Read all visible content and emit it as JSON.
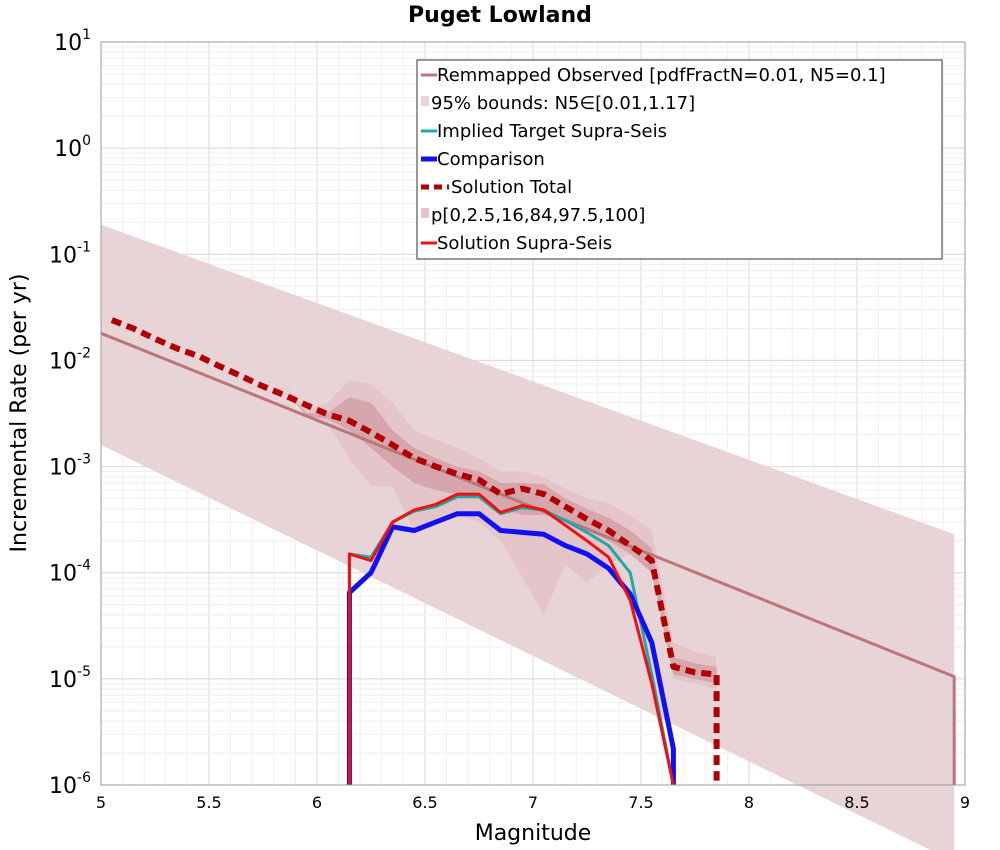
{
  "chart_data": {
    "type": "line",
    "title": "Puget Lowland",
    "xlabel": "Magnitude",
    "ylabel": "Incremental Rate (per yr)",
    "yscale": "log",
    "xlim": [
      5,
      9
    ],
    "ylim": [
      1e-06,
      10
    ],
    "grid": true,
    "legend_position": "top-right",
    "x_ticks": [
      "5",
      "5.5",
      "6",
      "6.5",
      "7",
      "7.5",
      "8",
      "8.5",
      "9"
    ],
    "y_ticks": [
      {
        "base": "10",
        "exp": "-6"
      },
      {
        "base": "10",
        "exp": "-5"
      },
      {
        "base": "10",
        "exp": "-4"
      },
      {
        "base": "10",
        "exp": "-3"
      },
      {
        "base": "10",
        "exp": "-2"
      },
      {
        "base": "10",
        "exp": "-1"
      },
      {
        "base": "10",
        "exp": "0"
      },
      {
        "base": "10",
        "exp": "1"
      }
    ],
    "legend": [
      "Remmapped Observed [pdfFractN=0.01, N5=0.1]",
      "95% bounds: N5∈[0.01,1.17]",
      "Implied Target Supra-Seis",
      "Comparison",
      "Solution Total",
      "p[0,2.5,16,84,97.5,100]",
      "Solution Supra-Seis"
    ],
    "colors": {
      "observed": "#b87878",
      "band": "#e8d4d6",
      "pband_outer": "#e4c6ca",
      "pband_inner": "#d6a6ac",
      "target": "#20a8a8",
      "comparison": "#1010f0",
      "total": "#b00000",
      "supra": "#f01010"
    },
    "series": {
      "observed": {
        "x": [
          5.0,
          8.95,
          8.95
        ],
        "y": [
          0.018,
          1.05e-05,
          1e-06
        ]
      },
      "bounds_upper": {
        "x": [
          5.0,
          8.95
        ],
        "y": [
          0.19,
          0.00023
        ]
      },
      "bounds_lower": {
        "x": [
          5.0,
          8.95
        ],
        "y": [
          0.0016,
          1.9e-07
        ]
      },
      "p_outer_upper": {
        "x": [
          5.75,
          5.85,
          5.95,
          6.05,
          6.15,
          6.25,
          6.35,
          6.45,
          6.55,
          6.65,
          6.75,
          6.85,
          6.95,
          7.05,
          7.15,
          7.25,
          7.35,
          7.45,
          7.55,
          7.65,
          7.75,
          7.85
        ],
        "y": [
          0.0055,
          0.006,
          0.0035,
          0.004,
          0.0065,
          0.006,
          0.004,
          0.0022,
          0.0018,
          0.0015,
          0.0012,
          0.0009,
          0.0009,
          0.0008,
          0.00062,
          0.0005,
          0.00045,
          0.00035,
          0.00025,
          2.2e-05,
          1.8e-05,
          1.6e-05
        ]
      },
      "p_outer_lower": {
        "x": [
          5.75,
          5.85,
          5.95,
          6.05,
          6.15,
          6.25,
          6.35,
          6.45,
          6.55,
          6.65,
          6.75,
          6.85,
          6.95,
          7.05,
          7.15,
          7.25,
          7.35,
          7.45,
          7.55,
          7.65,
          7.75,
          7.85
        ],
        "y": [
          0.0055,
          0.006,
          0.003,
          0.0025,
          0.0012,
          0.00065,
          0.00065,
          0.00025,
          0.0003,
          0.00035,
          0.0003,
          0.0002,
          9e-05,
          4e-05,
          0.00012,
          8e-05,
          0.00012,
          0.00015,
          0.0001,
          1e-05,
          9e-06,
          8e-06
        ]
      },
      "p_inner_upper": {
        "x": [
          5.75,
          5.85,
          5.95,
          6.05,
          6.15,
          6.25,
          6.35,
          6.45,
          6.55,
          6.65,
          6.75,
          6.85,
          6.95,
          7.05,
          7.15,
          7.25,
          7.35,
          7.45,
          7.55,
          7.65,
          7.75,
          7.85
        ],
        "y": [
          0.0055,
          0.0055,
          0.0032,
          0.0032,
          0.0045,
          0.004,
          0.0022,
          0.0015,
          0.0012,
          0.001,
          0.0009,
          0.0007,
          0.0007,
          0.00068,
          0.0005,
          0.0004,
          0.00033,
          0.00025,
          0.00017,
          1.6e-05,
          1.4e-05,
          1.3e-05
        ]
      },
      "p_inner_lower": {
        "x": [
          5.75,
          5.85,
          5.95,
          6.05,
          6.15,
          6.25,
          6.35,
          6.45,
          6.55,
          6.65,
          6.75,
          6.85,
          6.95,
          7.05,
          7.15,
          7.25,
          7.35,
          7.45,
          7.55,
          7.65,
          7.75,
          7.85
        ],
        "y": [
          0.0055,
          0.0055,
          0.003,
          0.0028,
          0.0022,
          0.0015,
          0.001,
          0.0007,
          0.0006,
          0.00055,
          0.0005,
          0.0004,
          0.00035,
          0.00035,
          0.0003,
          0.00025,
          0.0002,
          0.00015,
          0.0001,
          1.1e-05,
          1e-05,
          9e-06
        ]
      },
      "total": {
        "x": [
          5.05,
          5.15,
          5.25,
          5.35,
          5.45,
          5.55,
          5.65,
          5.75,
          5.85,
          5.95,
          6.05,
          6.15,
          6.25,
          6.35,
          6.45,
          6.55,
          6.65,
          6.75,
          6.85,
          6.95,
          7.05,
          7.15,
          7.25,
          7.35,
          7.45,
          7.55,
          7.65,
          7.75,
          7.85,
          7.85
        ],
        "y": [
          0.024,
          0.02,
          0.016,
          0.013,
          0.011,
          0.0088,
          0.0071,
          0.0057,
          0.0047,
          0.0038,
          0.0031,
          0.0027,
          0.0021,
          0.0016,
          0.0012,
          0.001,
          0.00085,
          0.00075,
          0.00055,
          0.00062,
          0.00055,
          0.00042,
          0.00032,
          0.00025,
          0.00018,
          0.00013,
          1.3e-05,
          1.15e-05,
          1.1e-05,
          1.1e-06
        ]
      },
      "target": {
        "x": [
          6.15,
          6.15,
          6.25,
          6.35,
          6.45,
          6.55,
          6.65,
          6.75,
          6.85,
          6.95,
          7.05,
          7.15,
          7.25,
          7.35,
          7.45,
          7.55,
          7.65
        ],
        "y": [
          1e-06,
          0.00015,
          0.00014,
          0.0003,
          0.00038,
          0.00042,
          0.00052,
          0.00052,
          0.00036,
          0.00041,
          0.00039,
          0.00031,
          0.00024,
          0.00018,
          0.0001,
          1.1e-05,
          1e-06
        ]
      },
      "comparison": {
        "x": [
          6.15,
          6.15,
          6.25,
          6.35,
          6.45,
          6.55,
          6.65,
          6.75,
          6.85,
          6.95,
          7.05,
          7.15,
          7.25,
          7.35,
          7.45,
          7.55,
          7.65,
          7.65
        ],
        "y": [
          1e-06,
          6.5e-05,
          0.0001,
          0.00027,
          0.00025,
          0.0003,
          0.00036,
          0.00036,
          0.00025,
          0.00024,
          0.00023,
          0.00018,
          0.00015,
          0.00011,
          6.3e-05,
          2.2e-05,
          2.2e-06,
          1e-06
        ]
      },
      "supra": {
        "x": [
          6.15,
          6.15,
          6.25,
          6.35,
          6.45,
          6.55,
          6.65,
          6.75,
          6.85,
          6.95,
          7.05,
          7.15,
          7.25,
          7.35,
          7.45,
          7.55,
          7.65
        ],
        "y": [
          1e-06,
          0.00015,
          0.00013,
          0.0003,
          0.00039,
          0.00044,
          0.00055,
          0.00055,
          0.00037,
          0.00043,
          0.00039,
          0.00028,
          0.0002,
          0.00014,
          5.5e-05,
          9e-06,
          1e-06
        ]
      }
    }
  }
}
